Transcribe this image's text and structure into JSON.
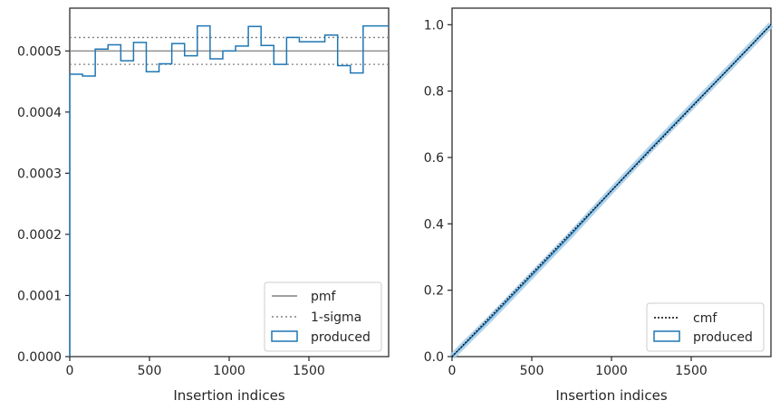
{
  "chart_data": [
    {
      "type": "histogram-step",
      "xlabel": "Insertion indices",
      "ylabel": "",
      "xlim": [
        0,
        2000
      ],
      "ylim": [
        0,
        0.00057
      ],
      "xticks": [
        0,
        500,
        1000,
        1500
      ],
      "xtick_labels": [
        "0",
        "500",
        "1000",
        "1500"
      ],
      "yticks": [
        0,
        0.0001,
        0.0002,
        0.0003,
        0.0004,
        0.0005
      ],
      "ytick_labels": [
        "0.0000",
        "0.0001",
        "0.0002",
        "0.0003",
        "0.0004",
        "0.0005"
      ],
      "legend_position": "lower-right",
      "legend": [
        "pmf",
        "1-sigma",
        "produced"
      ],
      "pmf": 0.0005,
      "sigma_band": [
        0.000478,
        0.000522
      ],
      "series": [
        {
          "name": "produced",
          "bin_edges": [
            0,
            80,
            160,
            240,
            320,
            400,
            480,
            560,
            640,
            720,
            800,
            880,
            960,
            1040,
            1120,
            1200,
            1280,
            1360,
            1440,
            1520,
            1600,
            1680,
            1760,
            1840,
            1920,
            2000
          ],
          "values": [
            0.000462,
            0.000459,
            0.000503,
            0.00051,
            0.000484,
            0.000514,
            0.000466,
            0.000479,
            0.000512,
            0.000492,
            0.000541,
            0.000487,
            0.0005,
            0.000508,
            0.00054,
            0.000509,
            0.000478,
            0.000522,
            0.000515,
            0.000515,
            0.000526,
            0.000476,
            0.000464,
            0.000541,
            0.000541
          ]
        }
      ],
      "colors": {
        "produced": "#1f77b4",
        "pmf": "#808080",
        "sigma": "#808080"
      }
    },
    {
      "type": "line",
      "xlabel": "Insertion indices",
      "ylabel": "",
      "xlim": [
        0,
        2000
      ],
      "ylim": [
        0,
        1.05
      ],
      "xticks": [
        0,
        500,
        1000,
        1500
      ],
      "xtick_labels": [
        "0",
        "500",
        "1000",
        "1500"
      ],
      "yticks": [
        0,
        0.2,
        0.4,
        0.6,
        0.8,
        1.0
      ],
      "ytick_labels": [
        "0.0",
        "0.2",
        "0.4",
        "0.6",
        "0.8",
        "1.0"
      ],
      "legend_position": "lower-right",
      "legend": [
        "cmf",
        "produced"
      ],
      "series": [
        {
          "name": "cmf",
          "x": [
            0,
            2000
          ],
          "y": [
            0,
            1.0
          ],
          "style": "dotted"
        },
        {
          "name": "produced",
          "x": [
            0,
            250,
            500,
            750,
            1000,
            1250,
            1500,
            1750,
            2000
          ],
          "y": [
            0,
            0.12,
            0.245,
            0.37,
            0.5,
            0.628,
            0.752,
            0.875,
            1.0
          ]
        }
      ],
      "colors": {
        "produced": "#1f77b4",
        "band": "#a6cbe6",
        "cmf": "#000000"
      }
    }
  ]
}
